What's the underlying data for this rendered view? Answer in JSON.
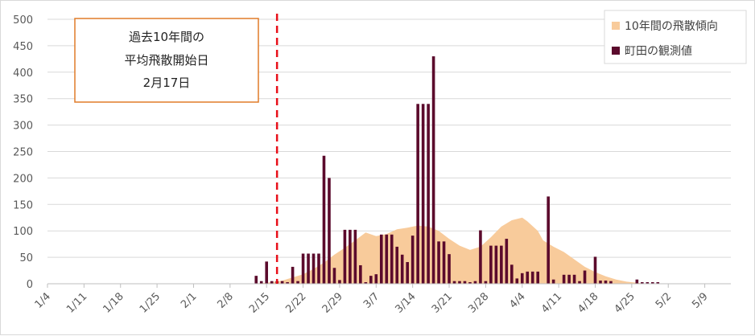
{
  "chart_data": {
    "type": "bar",
    "ylim": [
      0,
      500
    ],
    "y_ticks": [
      0,
      50,
      100,
      150,
      200,
      250,
      300,
      350,
      400,
      450,
      500
    ],
    "x_start": "1/4",
    "x_end": "5/14",
    "x_tick_labels": [
      "1/4",
      "1/11",
      "1/18",
      "1/25",
      "2/1",
      "2/8",
      "2/15",
      "2/22",
      "2/29",
      "3/7",
      "3/14",
      "3/21",
      "3/28",
      "4/4",
      "4/11",
      "4/18",
      "4/25",
      "5/2",
      "5/9"
    ],
    "grid": "horizontal",
    "legend_position": "top-right",
    "legend": [
      {
        "label": "10年間の飛散傾向",
        "color": "#f8cb9b"
      },
      {
        "label": "町田の観測値",
        "color": "#5b0a2c"
      }
    ],
    "annotation": {
      "lines": [
        "過去10年間の",
        "平均飛散開始日",
        "2月17日"
      ],
      "line_date": "2/17",
      "line_color": "#e8101a",
      "box_border_color": "#e07b28"
    },
    "series": [
      {
        "name": "10年間の飛散傾向",
        "type": "area",
        "color": "#f8cb9b",
        "points": [
          [
            "2/12",
            0
          ],
          [
            "2/15",
            2
          ],
          [
            "2/18",
            6
          ],
          [
            "2/20",
            12
          ],
          [
            "2/22",
            18
          ],
          [
            "2/24",
            28
          ],
          [
            "2/26",
            40
          ],
          [
            "2/28",
            55
          ],
          [
            "3/1",
            68
          ],
          [
            "3/3",
            82
          ],
          [
            "3/5",
            97
          ],
          [
            "3/7",
            90
          ],
          [
            "3/9",
            94
          ],
          [
            "3/11",
            103
          ],
          [
            "3/13",
            106
          ],
          [
            "3/15",
            110
          ],
          [
            "3/17",
            108
          ],
          [
            "3/19",
            100
          ],
          [
            "3/21",
            85
          ],
          [
            "3/23",
            72
          ],
          [
            "3/25",
            64
          ],
          [
            "3/27",
            70
          ],
          [
            "3/29",
            88
          ],
          [
            "3/31",
            108
          ],
          [
            "4/2",
            120
          ],
          [
            "4/4",
            125
          ],
          [
            "4/5",
            118
          ],
          [
            "4/7",
            100
          ],
          [
            "4/8",
            82
          ],
          [
            "4/10",
            70
          ],
          [
            "4/12",
            60
          ],
          [
            "4/14",
            46
          ],
          [
            "4/16",
            32
          ],
          [
            "4/18",
            22
          ],
          [
            "4/20",
            14
          ],
          [
            "4/22",
            8
          ],
          [
            "4/24",
            4
          ],
          [
            "4/26",
            2
          ],
          [
            "4/28",
            0
          ]
        ]
      },
      {
        "name": "町田の観測値",
        "type": "bar",
        "color": "#5b0a2c",
        "points": [
          [
            "2/13",
            15
          ],
          [
            "2/14",
            5
          ],
          [
            "2/15",
            42
          ],
          [
            "2/16",
            5
          ],
          [
            "2/17",
            5
          ],
          [
            "2/18",
            5
          ],
          [
            "2/19",
            3
          ],
          [
            "2/20",
            32
          ],
          [
            "2/21",
            5
          ],
          [
            "2/22",
            57
          ],
          [
            "2/23",
            57
          ],
          [
            "2/24",
            57
          ],
          [
            "2/25",
            57
          ],
          [
            "2/26",
            242
          ],
          [
            "2/27",
            200
          ],
          [
            "2/28",
            30
          ],
          [
            "2/29",
            7
          ],
          [
            "3/1",
            102
          ],
          [
            "3/2",
            102
          ],
          [
            "3/3",
            102
          ],
          [
            "3/4",
            35
          ],
          [
            "3/5",
            3
          ],
          [
            "3/6",
            15
          ],
          [
            "3/7",
            18
          ],
          [
            "3/8",
            93
          ],
          [
            "3/9",
            93
          ],
          [
            "3/10",
            93
          ],
          [
            "3/11",
            70
          ],
          [
            "3/12",
            55
          ],
          [
            "3/13",
            41
          ],
          [
            "3/14",
            91
          ],
          [
            "3/15",
            340
          ],
          [
            "3/16",
            340
          ],
          [
            "3/17",
            340
          ],
          [
            "3/18",
            430
          ],
          [
            "3/19",
            80
          ],
          [
            "3/20",
            80
          ],
          [
            "3/21",
            56
          ],
          [
            "3/22",
            5
          ],
          [
            "3/23",
            5
          ],
          [
            "3/24",
            5
          ],
          [
            "3/25",
            3
          ],
          [
            "3/26",
            5
          ],
          [
            "3/27",
            101
          ],
          [
            "3/28",
            5
          ],
          [
            "3/29",
            72
          ],
          [
            "3/30",
            72
          ],
          [
            "3/31",
            72
          ],
          [
            "4/1",
            85
          ],
          [
            "4/2",
            36
          ],
          [
            "4/3",
            10
          ],
          [
            "4/4",
            20
          ],
          [
            "4/5",
            23
          ],
          [
            "4/6",
            23
          ],
          [
            "4/7",
            23
          ],
          [
            "4/8",
            0
          ],
          [
            "4/9",
            165
          ],
          [
            "4/10",
            8
          ],
          [
            "4/11",
            0
          ],
          [
            "4/12",
            17
          ],
          [
            "4/13",
            17
          ],
          [
            "4/14",
            17
          ],
          [
            "4/15",
            5
          ],
          [
            "4/16",
            25
          ],
          [
            "4/17",
            0
          ],
          [
            "4/18",
            51
          ],
          [
            "4/19",
            6
          ],
          [
            "4/20",
            6
          ],
          [
            "4/21",
            5
          ],
          [
            "4/22",
            0
          ],
          [
            "4/23",
            0
          ],
          [
            "4/24",
            0
          ],
          [
            "4/25",
            0
          ],
          [
            "4/26",
            8
          ],
          [
            "4/27",
            3
          ],
          [
            "4/28",
            3
          ],
          [
            "4/29",
            3
          ],
          [
            "4/30",
            3
          ]
        ]
      }
    ]
  }
}
